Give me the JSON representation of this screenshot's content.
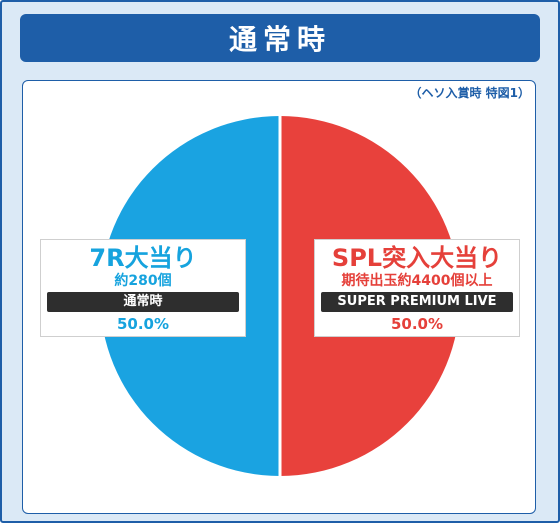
{
  "title": "通常時",
  "note": "（ヘソ入賞時 特図1）",
  "colors": {
    "frame": "#1e5ea8",
    "blue": "#1aa3e1",
    "red": "#e8413c"
  },
  "chart_data": {
    "type": "pie",
    "slices": [
      {
        "label": "7R大当り",
        "detail": "約280個",
        "mode": "通常時",
        "value": 50.0,
        "value_label": "50.0%",
        "color": "#1aa3e1"
      },
      {
        "label": "SPL突入大当り",
        "detail": "期待出玉約4400個以上",
        "mode": "SUPER PREMIUM LIVE",
        "value": 50.0,
        "value_label": "50.0%",
        "color": "#e8413c"
      }
    ]
  }
}
